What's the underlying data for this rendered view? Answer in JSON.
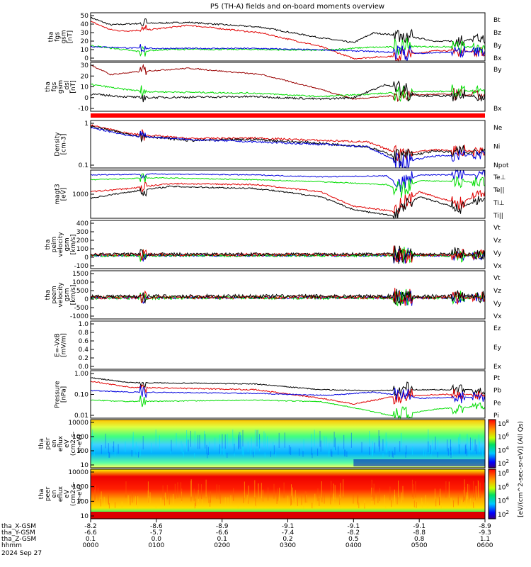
{
  "title": "P5 (TH-A) fields and on-board moments overview",
  "colors": {
    "black": "#000000",
    "red": "#e00000",
    "green": "#00dd00",
    "blue": "#0000dd",
    "darkred": "#990000"
  },
  "panels": [
    {
      "key": "fgs_btot",
      "ylabel_lines": [
        "tha",
        "fgs",
        "gsm",
        "[nT]"
      ],
      "yticks": [
        "50",
        "40",
        "30",
        "20",
        "10",
        "0"
      ],
      "ylim": [
        0,
        50
      ],
      "legend": [
        {
          "label": "Bt",
          "color": "#000000"
        },
        {
          "label": "Bz",
          "color": "#e00000"
        },
        {
          "label": "By",
          "color": "#00dd00"
        },
        {
          "label": "Bx",
          "color": "#0000dd"
        }
      ]
    },
    {
      "key": "fgs_dsl",
      "ylabel_lines": [
        "tha",
        "fgs",
        "gsm",
        "_dsl",
        "[nT]"
      ],
      "yticks": [
        "30",
        "20",
        "10",
        "0",
        "-10"
      ],
      "ylim": [
        -18,
        30
      ],
      "legend": [
        {
          "label": "By",
          "color": "#00dd00"
        },
        {
          "label": "Bx",
          "color": "#990000"
        }
      ]
    },
    {
      "key": "density",
      "ylabel_lines": [
        "Density",
        "[cm-3]"
      ],
      "yticks": [
        "1",
        "0.1"
      ],
      "log": true,
      "legend": [
        {
          "label": "Ne",
          "color": "#e00000"
        },
        {
          "label": "Ni",
          "color": "#000000"
        },
        {
          "label": "Npot",
          "color": "#0000dd"
        }
      ]
    },
    {
      "key": "temp",
      "ylabel_lines": [
        "magt3",
        "[eV]"
      ],
      "yticks": [
        "1000"
      ],
      "log": true,
      "legend": [
        {
          "label": "Te⊥",
          "color": "#e00000"
        },
        {
          "label": "Te||",
          "color": "#000000"
        },
        {
          "label": "Ti⊥",
          "color": "#00dd00"
        },
        {
          "label": "Ti||",
          "color": "#00dd00"
        }
      ]
    },
    {
      "key": "peim_vel",
      "ylabel_lines": [
        "tha",
        "peim",
        "velocity",
        "gsm",
        "[km/s]"
      ],
      "yticks": [
        "400",
        "300",
        "200",
        "100",
        "0",
        "-100"
      ],
      "ylim": [
        -150,
        400
      ],
      "legend": [
        {
          "label": "Vt",
          "color": "#000000"
        },
        {
          "label": "Vz",
          "color": "#e00000"
        },
        {
          "label": "Vy",
          "color": "#00dd00"
        },
        {
          "label": "Vx",
          "color": "#0000dd"
        }
      ]
    },
    {
      "key": "peem_vel",
      "ylabel_lines": [
        "tha",
        "peem",
        "velocity",
        "gsm",
        "[km/s]"
      ],
      "yticks": [
        "1500",
        "1000",
        "500",
        "0",
        "-500",
        "-1000"
      ],
      "ylim": [
        -1200,
        1500
      ],
      "legend": [
        {
          "label": "Vt",
          "color": "#000000"
        },
        {
          "label": "Vz",
          "color": "#e00000"
        },
        {
          "label": "Vy",
          "color": "#00dd00"
        },
        {
          "label": "Vx",
          "color": "#0000dd"
        }
      ]
    },
    {
      "key": "efield",
      "ylabel_lines": [
        "E=-VxB",
        "[mV/m]"
      ],
      "yticks": [
        "1.0",
        "0.8",
        "0.6",
        "0.4",
        "0.2",
        "0.0"
      ],
      "ylim": [
        0,
        1
      ],
      "legend": [
        {
          "label": "Ez",
          "color": "#e00000"
        },
        {
          "label": "Ey",
          "color": "#00dd00"
        },
        {
          "label": "Ex",
          "color": "#0000dd"
        }
      ]
    },
    {
      "key": "pressure",
      "ylabel_lines": [
        "Pressure",
        "[nPa]"
      ],
      "yticks": [
        "1.00",
        "0.10",
        "0.01"
      ],
      "log": true,
      "legend": [
        {
          "label": "Pt",
          "color": "#000000"
        },
        {
          "label": "Pb",
          "color": "#e00000"
        },
        {
          "label": "Pe",
          "color": "#00dd00"
        },
        {
          "label": "Pi",
          "color": "#0000dd"
        }
      ]
    },
    {
      "key": "peir_spec",
      "ylabel_lines": [
        "tha",
        "peir",
        "en",
        "eflux",
        "eV",
        "(cm2-s-",
        "sr-eV)"
      ],
      "yticks": [
        "10000",
        "1000",
        "100",
        "10"
      ],
      "spectrogram": true
    },
    {
      "key": "peer_spec",
      "ylabel_lines": [
        "tha",
        "peer",
        "en",
        "eflux",
        "eV",
        "(cm2-s-",
        "sr-eV)"
      ],
      "yticks": [
        "10000",
        "1000",
        "100",
        "10"
      ],
      "spectrogram": true
    }
  ],
  "colorbar": {
    "label": "[eV/(cm^2-sec-sr-eV)] (All Qs)",
    "ticks_top": [
      "10^8",
      "10^6",
      "10^4",
      "10^2"
    ],
    "ticks_bottom": [
      "10^8",
      "10^6",
      "10^4",
      "10^2"
    ]
  },
  "x_axis": {
    "row_labels": [
      "tha_X-GSM",
      "tha_Y-GSM",
      "tha_Z-GSM",
      "hhmm",
      "2024 Sep 27"
    ],
    "ticks": [
      {
        "x": "-8.2",
        "y": "-6.6",
        "z": "0.1",
        "hhmm": "0000"
      },
      {
        "x": "-8.6",
        "y": "-5.7",
        "z": "0.0",
        "hhmm": "0100"
      },
      {
        "x": "-8.9",
        "y": "-6.6",
        "z": "0.1",
        "hhmm": "0200"
      },
      {
        "x": "-9.1",
        "y": "-7.4",
        "z": "0.2",
        "hhmm": "0300"
      },
      {
        "x": "-9.1",
        "y": "-8.2",
        "z": "0.5",
        "hhmm": "0400"
      },
      {
        "x": "-9.1",
        "y": "-8.8",
        "z": "0.8",
        "hhmm": "0500"
      },
      {
        "x": "-8.9",
        "y": "-9.3",
        "z": "1.1",
        "hhmm": "0600"
      }
    ]
  },
  "chart_data": {
    "type": "line",
    "title": "P5 (TH-A) fields and on-board moments overview",
    "x": [
      "0000",
      "0100",
      "0200",
      "0300",
      "0400",
      "0500",
      "0600"
    ],
    "series": [
      {
        "name": "Bt",
        "values": [
          45,
          38,
          40,
          30,
          15,
          25,
          22
        ]
      },
      {
        "name": "Bz",
        "values": [
          40,
          30,
          37,
          25,
          3,
          12,
          8
        ]
      },
      {
        "name": "By",
        "values": [
          15,
          10,
          10,
          8,
          12,
          15,
          14
        ]
      },
      {
        "name": "Bx",
        "values": [
          14,
          12,
          11,
          10,
          8,
          5,
          8
        ]
      }
    ]
  }
}
